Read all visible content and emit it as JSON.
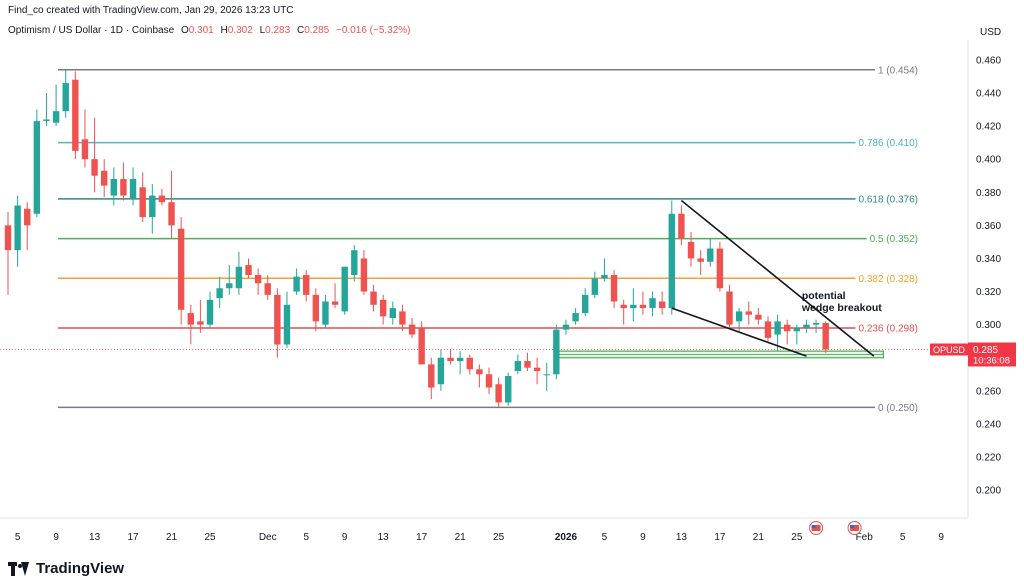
{
  "header": {
    "attribution": "Find_co created with TradingView.com, Jan 29, 2026 13:23 UTC",
    "symbol": "Optimism / US Dollar · 1D · Coinbase",
    "o_label": "O",
    "o_value": "0.301",
    "h_label": "H",
    "h_value": "0.302",
    "l_label": "L",
    "l_value": "0.283",
    "c_label": "C",
    "c_value": "0.285",
    "change": "−0.016 (−5.32%)"
  },
  "currency": "USD",
  "brand": "TradingView",
  "colors": {
    "up": "#26a69a",
    "down": "#ef5350",
    "fib_1": "#787b86",
    "fib_786": "#4fb5c4",
    "fib_618": "#2e8b80",
    "fib_5": "#4caf50",
    "fib_382": "#f7a12c",
    "fib_236": "#e05050",
    "fib_0": "#787b86",
    "wedge": "#131722",
    "zone": "#4caf50",
    "current_price": "#f23645"
  },
  "chart_data": {
    "type": "candlestick",
    "y_axis": {
      "ylim": [
        0.188,
        0.472
      ],
      "ticks": [
        "0.460",
        "0.440",
        "0.420",
        "0.400",
        "0.380",
        "0.360",
        "0.340",
        "0.320",
        "0.300",
        "0.280",
        "0.260",
        "0.240",
        "0.220",
        "0.200"
      ],
      "tick_values": [
        0.46,
        0.44,
        0.42,
        0.4,
        0.38,
        0.36,
        0.34,
        0.32,
        0.3,
        0.28,
        0.26,
        0.24,
        0.22,
        0.2
      ]
    },
    "x_axis": {
      "start_date": "2025-11-04",
      "end_date": "2026-02-10",
      "ticks": [
        {
          "label": "5",
          "date": "2025-11-05"
        },
        {
          "label": "9",
          "date": "2025-11-09"
        },
        {
          "label": "13",
          "date": "2025-11-13"
        },
        {
          "label": "17",
          "date": "2025-11-17"
        },
        {
          "label": "21",
          "date": "2025-11-21"
        },
        {
          "label": "25",
          "date": "2025-11-25"
        },
        {
          "label": "Dec",
          "date": "2025-12-01"
        },
        {
          "label": "5",
          "date": "2025-12-05"
        },
        {
          "label": "9",
          "date": "2025-12-09"
        },
        {
          "label": "13",
          "date": "2025-12-13"
        },
        {
          "label": "17",
          "date": "2025-12-17"
        },
        {
          "label": "21",
          "date": "2025-12-21"
        },
        {
          "label": "25",
          "date": "2025-12-25"
        },
        {
          "label": "2026",
          "date": "2026-01-01",
          "bold": true
        },
        {
          "label": "5",
          "date": "2026-01-05"
        },
        {
          "label": "9",
          "date": "2026-01-09"
        },
        {
          "label": "13",
          "date": "2026-01-13"
        },
        {
          "label": "17",
          "date": "2026-01-17"
        },
        {
          "label": "21",
          "date": "2026-01-21"
        },
        {
          "label": "25",
          "date": "2026-01-25"
        },
        {
          "label": "Feb",
          "date": "2026-02-01"
        },
        {
          "label": "5",
          "date": "2026-02-05"
        },
        {
          "label": "9",
          "date": "2026-02-09"
        }
      ]
    },
    "candles": [
      {
        "date": "2025-11-04",
        "o": 0.36,
        "h": 0.368,
        "l": 0.318,
        "c": 0.345
      },
      {
        "date": "2025-11-05",
        "o": 0.345,
        "h": 0.378,
        "l": 0.335,
        "c": 0.372
      },
      {
        "date": "2025-11-06",
        "o": 0.37,
        "h": 0.374,
        "l": 0.345,
        "c": 0.36
      },
      {
        "date": "2025-11-07",
        "o": 0.367,
        "h": 0.43,
        "l": 0.365,
        "c": 0.423
      },
      {
        "date": "2025-11-08",
        "o": 0.423,
        "h": 0.44,
        "l": 0.42,
        "c": 0.424
      },
      {
        "date": "2025-11-09",
        "o": 0.422,
        "h": 0.445,
        "l": 0.42,
        "c": 0.429
      },
      {
        "date": "2025-11-10",
        "o": 0.429,
        "h": 0.454,
        "l": 0.425,
        "c": 0.446
      },
      {
        "date": "2025-11-11",
        "o": 0.448,
        "h": 0.453,
        "l": 0.4,
        "c": 0.405
      },
      {
        "date": "2025-11-12",
        "o": 0.412,
        "h": 0.43,
        "l": 0.395,
        "c": 0.4
      },
      {
        "date": "2025-11-13",
        "o": 0.4,
        "h": 0.425,
        "l": 0.38,
        "c": 0.39
      },
      {
        "date": "2025-11-14",
        "o": 0.393,
        "h": 0.4,
        "l": 0.377,
        "c": 0.384
      },
      {
        "date": "2025-11-15",
        "o": 0.378,
        "h": 0.395,
        "l": 0.372,
        "c": 0.388
      },
      {
        "date": "2025-11-16",
        "o": 0.388,
        "h": 0.398,
        "l": 0.375,
        "c": 0.378
      },
      {
        "date": "2025-11-17",
        "o": 0.376,
        "h": 0.395,
        "l": 0.372,
        "c": 0.388
      },
      {
        "date": "2025-11-18",
        "o": 0.383,
        "h": 0.392,
        "l": 0.362,
        "c": 0.365
      },
      {
        "date": "2025-11-19",
        "o": 0.365,
        "h": 0.385,
        "l": 0.355,
        "c": 0.378
      },
      {
        "date": "2025-11-20",
        "o": 0.378,
        "h": 0.382,
        "l": 0.372,
        "c": 0.374
      },
      {
        "date": "2025-11-21",
        "o": 0.374,
        "h": 0.393,
        "l": 0.352,
        "c": 0.36
      },
      {
        "date": "2025-11-22",
        "o": 0.358,
        "h": 0.365,
        "l": 0.3,
        "c": 0.309
      },
      {
        "date": "2025-11-23",
        "o": 0.307,
        "h": 0.312,
        "l": 0.288,
        "c": 0.3
      },
      {
        "date": "2025-11-24",
        "o": 0.302,
        "h": 0.315,
        "l": 0.295,
        "c": 0.3
      },
      {
        "date": "2025-11-25",
        "o": 0.3,
        "h": 0.32,
        "l": 0.298,
        "c": 0.315
      },
      {
        "date": "2025-11-26",
        "o": 0.316,
        "h": 0.329,
        "l": 0.31,
        "c": 0.322
      },
      {
        "date": "2025-11-27",
        "o": 0.322,
        "h": 0.336,
        "l": 0.318,
        "c": 0.325
      },
      {
        "date": "2025-11-28",
        "o": 0.322,
        "h": 0.344,
        "l": 0.318,
        "c": 0.335
      },
      {
        "date": "2025-11-29",
        "o": 0.336,
        "h": 0.34,
        "l": 0.328,
        "c": 0.33
      },
      {
        "date": "2025-11-30",
        "o": 0.33,
        "h": 0.334,
        "l": 0.318,
        "c": 0.325
      },
      {
        "date": "2025-12-01",
        "o": 0.325,
        "h": 0.33,
        "l": 0.315,
        "c": 0.318
      },
      {
        "date": "2025-12-02",
        "o": 0.318,
        "h": 0.322,
        "l": 0.28,
        "c": 0.288
      },
      {
        "date": "2025-12-03",
        "o": 0.288,
        "h": 0.32,
        "l": 0.286,
        "c": 0.312
      },
      {
        "date": "2025-12-04",
        "o": 0.32,
        "h": 0.334,
        "l": 0.318,
        "c": 0.329
      },
      {
        "date": "2025-12-05",
        "o": 0.33,
        "h": 0.333,
        "l": 0.314,
        "c": 0.318
      },
      {
        "date": "2025-12-06",
        "o": 0.318,
        "h": 0.322,
        "l": 0.296,
        "c": 0.302
      },
      {
        "date": "2025-12-07",
        "o": 0.3,
        "h": 0.318,
        "l": 0.298,
        "c": 0.314
      },
      {
        "date": "2025-12-08",
        "o": 0.314,
        "h": 0.325,
        "l": 0.31,
        "c": 0.312
      },
      {
        "date": "2025-12-09",
        "o": 0.308,
        "h": 0.335,
        "l": 0.306,
        "c": 0.335
      },
      {
        "date": "2025-12-10",
        "o": 0.33,
        "h": 0.348,
        "l": 0.326,
        "c": 0.345
      },
      {
        "date": "2025-12-11",
        "o": 0.34,
        "h": 0.345,
        "l": 0.318,
        "c": 0.32
      },
      {
        "date": "2025-12-12",
        "o": 0.32,
        "h": 0.324,
        "l": 0.308,
        "c": 0.312
      },
      {
        "date": "2025-12-13",
        "o": 0.315,
        "h": 0.318,
        "l": 0.3,
        "c": 0.305
      },
      {
        "date": "2025-12-14",
        "o": 0.304,
        "h": 0.314,
        "l": 0.3,
        "c": 0.31
      },
      {
        "date": "2025-12-15",
        "o": 0.308,
        "h": 0.312,
        "l": 0.296,
        "c": 0.3
      },
      {
        "date": "2025-12-16",
        "o": 0.3,
        "h": 0.304,
        "l": 0.292,
        "c": 0.294
      },
      {
        "date": "2025-12-17",
        "o": 0.298,
        "h": 0.302,
        "l": 0.276,
        "c": 0.276
      },
      {
        "date": "2025-12-18",
        "o": 0.276,
        "h": 0.28,
        "l": 0.255,
        "c": 0.262
      },
      {
        "date": "2025-12-19",
        "o": 0.264,
        "h": 0.285,
        "l": 0.26,
        "c": 0.28
      },
      {
        "date": "2025-12-20",
        "o": 0.28,
        "h": 0.285,
        "l": 0.276,
        "c": 0.278
      },
      {
        "date": "2025-12-21",
        "o": 0.278,
        "h": 0.284,
        "l": 0.27,
        "c": 0.28
      },
      {
        "date": "2025-12-22",
        "o": 0.28,
        "h": 0.282,
        "l": 0.27,
        "c": 0.273
      },
      {
        "date": "2025-12-23",
        "o": 0.273,
        "h": 0.276,
        "l": 0.262,
        "c": 0.27
      },
      {
        "date": "2025-12-24",
        "o": 0.27,
        "h": 0.274,
        "l": 0.258,
        "c": 0.262
      },
      {
        "date": "2025-12-25",
        "o": 0.264,
        "h": 0.268,
        "l": 0.25,
        "c": 0.253
      },
      {
        "date": "2025-12-26",
        "o": 0.253,
        "h": 0.271,
        "l": 0.251,
        "c": 0.269
      },
      {
        "date": "2025-12-27",
        "o": 0.272,
        "h": 0.282,
        "l": 0.27,
        "c": 0.278
      },
      {
        "date": "2025-12-28",
        "o": 0.278,
        "h": 0.283,
        "l": 0.272,
        "c": 0.274
      },
      {
        "date": "2025-12-29",
        "o": 0.274,
        "h": 0.28,
        "l": 0.264,
        "c": 0.272
      },
      {
        "date": "2025-12-30",
        "o": 0.27,
        "h": 0.277,
        "l": 0.26,
        "c": 0.27
      },
      {
        "date": "2025-12-31",
        "o": 0.27,
        "h": 0.3,
        "l": 0.267,
        "c": 0.297
      },
      {
        "date": "2026-01-01",
        "o": 0.297,
        "h": 0.303,
        "l": 0.294,
        "c": 0.3
      },
      {
        "date": "2026-01-02",
        "o": 0.302,
        "h": 0.31,
        "l": 0.3,
        "c": 0.307
      },
      {
        "date": "2026-01-03",
        "o": 0.307,
        "h": 0.322,
        "l": 0.305,
        "c": 0.318
      },
      {
        "date": "2026-01-04",
        "o": 0.318,
        "h": 0.332,
        "l": 0.316,
        "c": 0.328
      },
      {
        "date": "2026-01-05",
        "o": 0.328,
        "h": 0.34,
        "l": 0.326,
        "c": 0.33
      },
      {
        "date": "2026-01-06",
        "o": 0.33,
        "h": 0.333,
        "l": 0.31,
        "c": 0.314
      },
      {
        "date": "2026-01-07",
        "o": 0.312,
        "h": 0.315,
        "l": 0.3,
        "c": 0.31
      },
      {
        "date": "2026-01-08",
        "o": 0.31,
        "h": 0.322,
        "l": 0.302,
        "c": 0.312
      },
      {
        "date": "2026-01-09",
        "o": 0.312,
        "h": 0.32,
        "l": 0.306,
        "c": 0.31
      },
      {
        "date": "2026-01-10",
        "o": 0.31,
        "h": 0.32,
        "l": 0.305,
        "c": 0.316
      },
      {
        "date": "2026-01-11",
        "o": 0.314,
        "h": 0.32,
        "l": 0.306,
        "c": 0.31
      },
      {
        "date": "2026-01-12",
        "o": 0.31,
        "h": 0.375,
        "l": 0.306,
        "c": 0.367
      },
      {
        "date": "2026-01-13",
        "o": 0.367,
        "h": 0.372,
        "l": 0.348,
        "c": 0.352
      },
      {
        "date": "2026-01-14",
        "o": 0.35,
        "h": 0.356,
        "l": 0.335,
        "c": 0.34
      },
      {
        "date": "2026-01-15",
        "o": 0.34,
        "h": 0.345,
        "l": 0.33,
        "c": 0.338
      },
      {
        "date": "2026-01-16",
        "o": 0.338,
        "h": 0.352,
        "l": 0.335,
        "c": 0.346
      },
      {
        "date": "2026-01-17",
        "o": 0.346,
        "h": 0.35,
        "l": 0.32,
        "c": 0.322
      },
      {
        "date": "2026-01-18",
        "o": 0.32,
        "h": 0.324,
        "l": 0.298,
        "c": 0.3
      },
      {
        "date": "2026-01-19",
        "o": 0.302,
        "h": 0.31,
        "l": 0.296,
        "c": 0.308
      },
      {
        "date": "2026-01-20",
        "o": 0.308,
        "h": 0.314,
        "l": 0.3,
        "c": 0.306
      },
      {
        "date": "2026-01-21",
        "o": 0.306,
        "h": 0.31,
        "l": 0.3,
        "c": 0.303
      },
      {
        "date": "2026-01-22",
        "o": 0.302,
        "h": 0.305,
        "l": 0.29,
        "c": 0.292
      },
      {
        "date": "2026-01-23",
        "o": 0.294,
        "h": 0.306,
        "l": 0.284,
        "c": 0.302
      },
      {
        "date": "2026-01-24",
        "o": 0.3,
        "h": 0.303,
        "l": 0.288,
        "c": 0.296
      },
      {
        "date": "2026-01-25",
        "o": 0.296,
        "h": 0.3,
        "l": 0.288,
        "c": 0.298
      },
      {
        "date": "2026-01-26",
        "o": 0.298,
        "h": 0.303,
        "l": 0.295,
        "c": 0.3
      },
      {
        "date": "2026-01-27",
        "o": 0.3,
        "h": 0.303,
        "l": 0.295,
        "c": 0.301
      },
      {
        "date": "2026-01-28",
        "o": 0.301,
        "h": 0.302,
        "l": 0.283,
        "c": 0.285
      }
    ],
    "fib_levels": [
      {
        "label": "1 (0.454)",
        "value": 0.454,
        "color_key": "fib_1"
      },
      {
        "label": "0.786 (0.410)",
        "value": 0.41,
        "color_key": "fib_786"
      },
      {
        "label": "0.618 (0.376)",
        "value": 0.376,
        "color_key": "fib_618"
      },
      {
        "label": "0.5 (0.352)",
        "value": 0.352,
        "color_key": "fib_5"
      },
      {
        "label": "0.382 (0.328)",
        "value": 0.328,
        "color_key": "fib_382"
      },
      {
        "label": "0.236 (0.298)",
        "value": 0.298,
        "color_key": "fib_236"
      },
      {
        "label": "0 (0.250)",
        "value": 0.25,
        "color_key": "fib_0"
      }
    ],
    "wedge": {
      "upper": [
        {
          "date": "2026-01-13",
          "v": 0.375
        },
        {
          "date": "2026-02-02",
          "v": 0.281
        }
      ],
      "lower": [
        {
          "date": "2026-01-12",
          "v": 0.31
        },
        {
          "date": "2026-01-26",
          "v": 0.281
        }
      ]
    },
    "zone": {
      "start": "2025-12-31",
      "end": "2026-02-03",
      "top": 0.284,
      "bottom": 0.28
    },
    "annotation": {
      "line1": "potential",
      "line2": "wedge breakout",
      "date": "2026-01-25",
      "v": 0.315
    },
    "current_price": {
      "symbol": "OPUSD",
      "value": "0.285",
      "countdown": "10:36:08",
      "v": 0.285
    }
  }
}
